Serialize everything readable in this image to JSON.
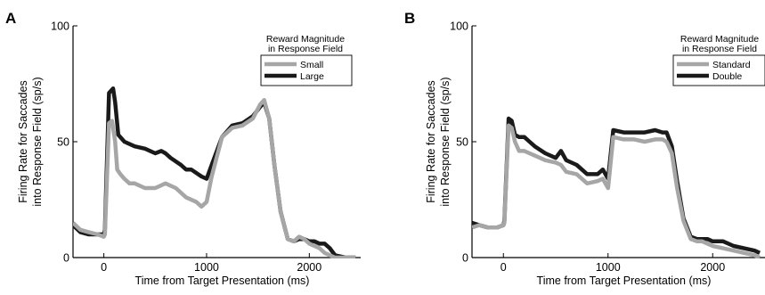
{
  "chart_data": [
    {
      "panel": "A",
      "type": "line",
      "xlabel": "Time from Target Presentation (ms)",
      "ylabel": [
        "Firing Rate for Saccades",
        "into Response Field (sp/s)"
      ],
      "xlim": [
        -300,
        2500
      ],
      "ylim": [
        0,
        100
      ],
      "xticks": [
        0,
        1000,
        2000
      ],
      "yticks": [
        0,
        50,
        100
      ],
      "grid": false,
      "legend": {
        "title": [
          "Reward Magnitude",
          "in Response Field"
        ],
        "position": "top-right"
      },
      "series": [
        {
          "name": "Large",
          "color": "#1a1a1a",
          "x": [
            -300,
            -230,
            -150,
            -60,
            0,
            10,
            50,
            90,
            110,
            140,
            200,
            300,
            400,
            500,
            560,
            600,
            650,
            750,
            800,
            850,
            950,
            1000,
            1050,
            1150,
            1250,
            1350,
            1450,
            1520,
            1560,
            1610,
            1660,
            1720,
            1790,
            1850,
            1900,
            1950,
            2000,
            2050,
            2100,
            2150,
            2200,
            2250,
            2350,
            2450
          ],
          "y": [
            14,
            11,
            10,
            10,
            10,
            12,
            71,
            73,
            67,
            53,
            50,
            48,
            47,
            45,
            46,
            45,
            43,
            40,
            38,
            38,
            35,
            34,
            40,
            52,
            57,
            58,
            61,
            65,
            67,
            60,
            40,
            20,
            8,
            7,
            8,
            8,
            7,
            7,
            6,
            6,
            4,
            1,
            0,
            0
          ]
        },
        {
          "name": "Small",
          "color": "#a6a6a6",
          "x": [
            -300,
            -230,
            -150,
            -60,
            0,
            10,
            50,
            80,
            110,
            130,
            160,
            200,
            250,
            300,
            400,
            500,
            600,
            700,
            800,
            900,
            950,
            1000,
            1050,
            1150,
            1250,
            1350,
            1450,
            1520,
            1560,
            1610,
            1660,
            1720,
            1790,
            1850,
            1900,
            1950,
            2000,
            2050,
            2100,
            2150,
            2200,
            2250,
            2350,
            2450
          ],
          "y": [
            15,
            12,
            11,
            10,
            9,
            10,
            58,
            59,
            50,
            38,
            36,
            34,
            32,
            32,
            30,
            30,
            32,
            30,
            26,
            24,
            22,
            24,
            35,
            52,
            56,
            57,
            60,
            66,
            68,
            60,
            40,
            20,
            8,
            7,
            9,
            8,
            6,
            5,
            4,
            2,
            1,
            0,
            0,
            0
          ]
        }
      ]
    },
    {
      "panel": "B",
      "type": "line",
      "xlabel": "Time from Target Presentation (ms)",
      "ylabel": [
        "Firing Rate for Saccades",
        "into Response Field (sp/s)"
      ],
      "xlim": [
        -300,
        2500
      ],
      "ylim": [
        0,
        100
      ],
      "xticks": [
        0,
        1000,
        2000
      ],
      "yticks": [
        0,
        50,
        100
      ],
      "grid": false,
      "legend": {
        "title": [
          "Reward Magnitude",
          "in Response Field"
        ],
        "position": "top-right"
      },
      "series": [
        {
          "name": "Double",
          "color": "#1a1a1a",
          "x": [
            -300,
            -230,
            -150,
            -60,
            0,
            10,
            50,
            80,
            110,
            150,
            200,
            250,
            300,
            400,
            500,
            550,
            600,
            700,
            800,
            900,
            950,
            1000,
            1050,
            1150,
            1250,
            1350,
            1450,
            1520,
            1560,
            1610,
            1660,
            1720,
            1790,
            1850,
            1900,
            1950,
            2000,
            2100,
            2200,
            2300,
            2400,
            2450
          ],
          "y": [
            15,
            14,
            13,
            13,
            14,
            16,
            60,
            59,
            53,
            52,
            52,
            50,
            48,
            45,
            43,
            46,
            42,
            40,
            36,
            36,
            38,
            34,
            55,
            54,
            54,
            54,
            55,
            54,
            54,
            48,
            33,
            17,
            9,
            8,
            8,
            8,
            7,
            7,
            5,
            4,
            3,
            2
          ]
        },
        {
          "name": "Standard",
          "color": "#a6a6a6",
          "x": [
            -300,
            -230,
            -150,
            -60,
            0,
            10,
            50,
            80,
            110,
            150,
            200,
            250,
            300,
            400,
            500,
            550,
            600,
            700,
            800,
            900,
            950,
            1000,
            1050,
            1150,
            1250,
            1350,
            1450,
            1520,
            1560,
            1610,
            1660,
            1720,
            1790,
            1850,
            1900,
            1950,
            2000,
            2100,
            2200,
            2300,
            2400,
            2450
          ],
          "y": [
            13,
            14,
            13,
            13,
            14,
            15,
            57,
            56,
            50,
            46,
            46,
            45,
            44,
            42,
            41,
            40,
            37,
            36,
            32,
            33,
            34,
            30,
            52,
            51,
            51,
            50,
            51,
            51,
            50,
            45,
            30,
            16,
            8,
            7,
            7,
            6,
            5,
            4,
            3,
            2,
            1,
            0
          ]
        }
      ]
    }
  ]
}
